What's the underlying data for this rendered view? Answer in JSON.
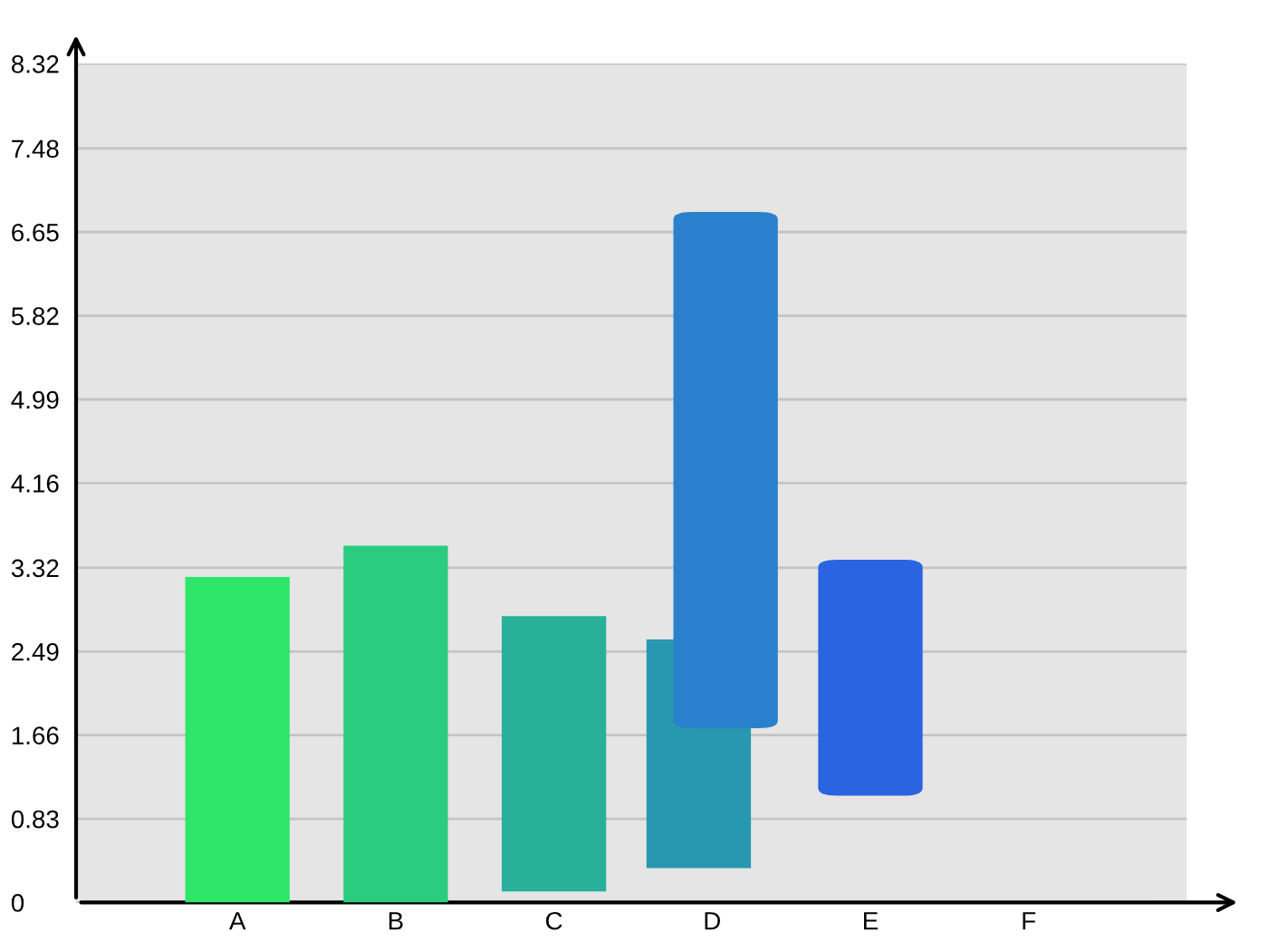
{
  "chart_data": {
    "type": "bar",
    "categories": [
      "A",
      "B",
      "C",
      "D",
      "E",
      "F"
    ],
    "series": [
      {
        "values": [
          3.23,
          3.54,
          2.73,
          2.27,
          null,
          null
        ],
        "base": [
          0,
          0,
          0.11,
          0.34,
          null,
          null
        ],
        "colors": [
          "#2de66a",
          "#2bcc80",
          "#28b09a",
          "#2898b0",
          "#2a80cc",
          "#2a64e0"
        ]
      },
      {
        "values": [
          null,
          null,
          null,
          5.12,
          2.34,
          null
        ],
        "base": [
          null,
          null,
          null,
          1.73,
          1.06,
          null
        ],
        "colors": [
          "#2de66a",
          "#2bcc80",
          "#28b09a",
          "#2a80cc",
          "#2a64e0",
          "#2a64e0"
        ]
      }
    ],
    "ylim": [
      0,
      8.32
    ],
    "yticks": [
      0,
      0.83,
      1.66,
      2.49,
      3.32,
      4.16,
      4.99,
      5.82,
      6.65,
      7.48,
      8.32
    ],
    "grid": "y"
  }
}
